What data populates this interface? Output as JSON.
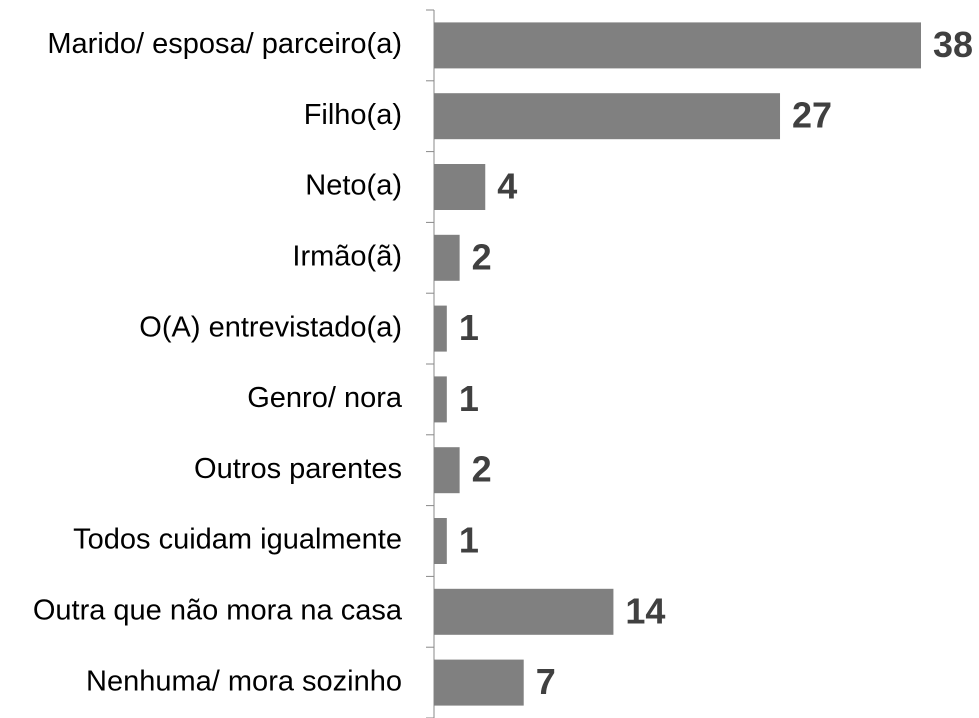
{
  "chart_data": {
    "type": "hbar",
    "categories": [
      "Marido/ esposa/ parceiro(a)",
      "Filho(a)",
      "Neto(a)",
      "Irmão(ã)",
      "O(A) entrevistado(a)",
      "Genro/ nora",
      "Outros parentes",
      "Todos cuidam igualmente",
      "Outra que não mora na casa",
      "Nenhuma/ mora sozinho"
    ],
    "values": [
      38,
      27,
      4,
      2,
      1,
      1,
      2,
      1,
      14,
      7
    ],
    "color": "#808080"
  }
}
